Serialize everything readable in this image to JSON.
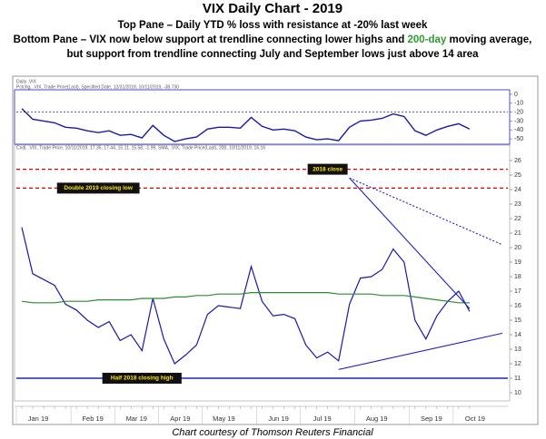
{
  "chart_data": {
    "type": "line",
    "title": "VIX Daily Chart - 2019",
    "subtitle_lines": [
      [
        "Top Pane – Daily YTD % loss with resistance at -20% last week"
      ],
      [
        "Bottom Pane – VIX now below support at trendline connecting lower highs and ",
        "200-day",
        " moving average,"
      ],
      [
        "but support from trendline connecting July and September lows just above 14 area"
      ]
    ],
    "chart_header": "Daily .VIX",
    "top_legend": "Pctchg, .VIX, Trade Price(Last), Specified Date, 12/31/2018, 10/11/2019, -38.730",
    "bottom_legend": "Cndl, .VIX, Trade Price, 10/11/2019, 17.35, 17.44, 15.11, 15.58, -1.99, SMA, .VIX, Trade Price(Last), 200, 10/11/2019, 16.16",
    "caption": "Chart courtesy of Thomson Reuters Financial",
    "categories": [
      "Jan 19",
      null,
      null,
      null,
      null,
      "Feb 19",
      null,
      null,
      null,
      "Mar 19",
      null,
      null,
      null,
      "Apr 19",
      null,
      null,
      null,
      "May 19",
      null,
      null,
      null,
      null,
      "Jun 19",
      null,
      null,
      null,
      "Jul 19",
      null,
      null,
      null,
      null,
      "Aug 19",
      null,
      null,
      null,
      null,
      "Sep 19",
      null,
      null,
      null,
      "Oct 19",
      null
    ],
    "top_pane": {
      "ylim": [
        -55,
        4
      ],
      "yticks": [
        0,
        -10,
        -20,
        -30,
        -40,
        -50
      ],
      "reference": -20,
      "series": [
        {
          "name": "Pctchg",
          "color": "#1a1aa8",
          "values": [
            -16,
            -28,
            -30,
            -32,
            -37,
            -38,
            -41,
            -43,
            -41,
            -46,
            -45,
            -49,
            -35,
            -46,
            -53,
            -50,
            -48,
            -39,
            -37,
            -37,
            -38,
            -26,
            -36,
            -40,
            -39,
            -41,
            -48,
            -51,
            -50,
            -52,
            -37,
            -30,
            -29,
            -27,
            -22,
            -25,
            -41,
            -46,
            -40,
            -36,
            -33,
            -39
          ]
        }
      ]
    },
    "bottom_pane": {
      "ylim": [
        9.5,
        27
      ],
      "yticks": [
        10,
        11,
        12,
        13,
        14,
        15,
        16,
        17,
        18,
        19,
        20,
        21,
        22,
        23,
        24,
        25,
        26
      ],
      "series": [
        {
          "name": "VIX",
          "color": "#1a1aa8",
          "values": [
            21.4,
            18.2,
            17.8,
            17.4,
            16.1,
            15.7,
            15.0,
            14.5,
            14.9,
            13.6,
            14.0,
            12.9,
            16.5,
            13.7,
            12.0,
            12.6,
            13.3,
            15.4,
            16.0,
            15.9,
            15.8,
            18.7,
            16.3,
            15.3,
            15.4,
            15.1,
            13.3,
            12.4,
            12.8,
            12.2,
            16.1,
            17.9,
            18.0,
            18.5,
            19.9,
            19.0,
            15.0,
            13.7,
            15.3,
            16.3,
            17.0,
            15.6
          ]
        },
        {
          "name": "SMA 200",
          "color": "#2e8b2e",
          "values": [
            16.3,
            16.2,
            16.2,
            16.2,
            16.3,
            16.3,
            16.3,
            16.4,
            16.4,
            16.4,
            16.4,
            16.5,
            16.5,
            16.5,
            16.6,
            16.6,
            16.7,
            16.7,
            16.8,
            16.8,
            16.8,
            16.9,
            16.9,
            16.9,
            16.9,
            16.9,
            16.9,
            16.9,
            16.9,
            16.8,
            16.8,
            16.8,
            16.8,
            16.7,
            16.7,
            16.7,
            16.6,
            16.5,
            16.4,
            16.3,
            16.2,
            16.2
          ]
        }
      ],
      "hlines": [
        {
          "value": 25.4,
          "label": "2018 close",
          "color": "#e00000",
          "dashed": true
        },
        {
          "value": 24.1,
          "label": "Double 2019 closing low",
          "color": "#e00000",
          "dashed": true
        },
        {
          "value": 11,
          "label": "Half 2018 closing high",
          "color": "#2020c0",
          "dashed": false
        }
      ],
      "trendlines": [
        {
          "from": [
            30,
            24.8
          ],
          "to": [
            41,
            15.8
          ],
          "dashed": false
        },
        {
          "from": [
            30,
            24.8
          ],
          "to": [
            44,
            20.2
          ],
          "dashed": true
        },
        {
          "from": [
            29,
            11.6
          ],
          "to": [
            44,
            14.1
          ],
          "dashed": false
        }
      ]
    }
  }
}
